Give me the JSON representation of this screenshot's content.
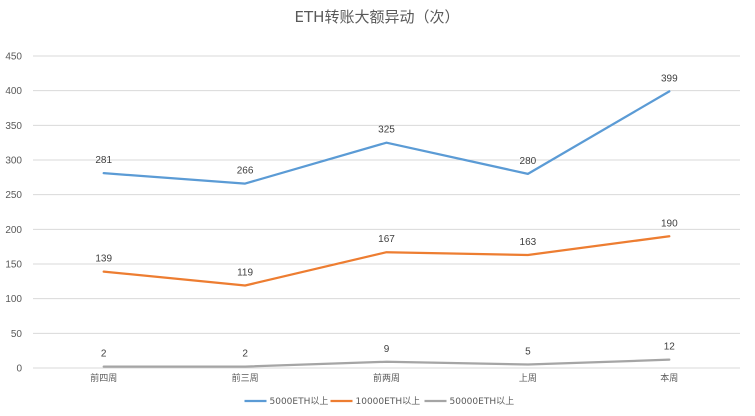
{
  "chart_data": {
    "type": "line",
    "title": "ETH转账大额异动（次）",
    "categories": [
      "前四周",
      "前三周",
      "前两周",
      "上周",
      "本周"
    ],
    "ylim": [
      0,
      450
    ],
    "yticks": [
      0,
      50,
      100,
      150,
      200,
      250,
      300,
      350,
      400,
      450
    ],
    "grid": true,
    "legend_position": "bottom",
    "series": [
      {
        "name": "5000ETH以上",
        "color": "#5b9bd5",
        "values": [
          281,
          266,
          325,
          280,
          399
        ]
      },
      {
        "name": "10000ETH以上",
        "color": "#ed7d31",
        "values": [
          139,
          119,
          167,
          163,
          190
        ]
      },
      {
        "name": "50000ETH以上",
        "color": "#a5a5a5",
        "values": [
          2,
          2,
          9,
          5,
          12
        ]
      }
    ]
  }
}
